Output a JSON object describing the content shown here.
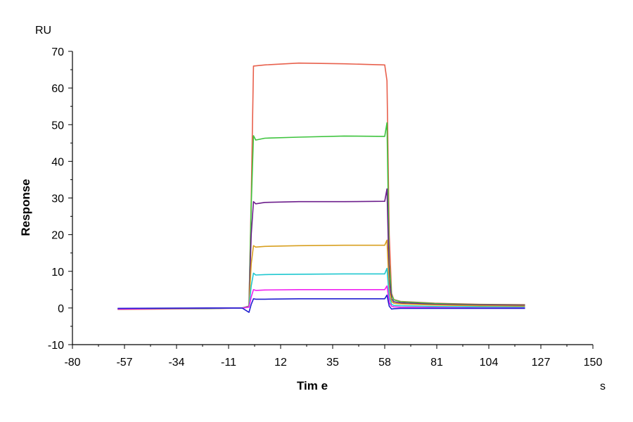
{
  "chart_data": {
    "type": "line",
    "title": "",
    "xlabel": "Tim e",
    "ylabel": "Response",
    "x_unit": "s",
    "y_unit": "RU",
    "xlim": [
      -80,
      150
    ],
    "ylim": [
      -10,
      70
    ],
    "x_ticks": [
      -80,
      -57,
      -34,
      -11,
      12,
      35,
      58,
      81,
      104,
      127,
      150
    ],
    "y_ticks": [
      -10,
      0,
      10,
      20,
      30,
      40,
      50,
      60,
      70
    ],
    "grid": false,
    "legend": "none",
    "series": [
      {
        "color": "#e8604c",
        "x": [
          -60,
          -20,
          -5,
          -2,
          -1,
          0,
          5,
          20,
          40,
          58,
          59,
          60,
          61,
          62,
          65,
          80,
          100,
          120
        ],
        "y": [
          -0.4,
          -0.2,
          0.0,
          0.5,
          30.0,
          66.0,
          66.3,
          66.8,
          66.6,
          66.3,
          62.0,
          20.0,
          4.0,
          2.3,
          1.8,
          1.3,
          1.0,
          0.9
        ]
      },
      {
        "color": "#3ec43e",
        "x": [
          -60,
          -20,
          -5,
          -2,
          -1,
          0,
          1,
          5,
          20,
          40,
          58,
          59,
          60,
          61,
          62,
          65,
          80,
          100,
          120
        ],
        "y": [
          -0.3,
          -0.1,
          0.0,
          0.5,
          28.0,
          47.0,
          45.8,
          46.3,
          46.6,
          46.9,
          46.8,
          50.5,
          12.0,
          3.5,
          2.2,
          1.7,
          1.2,
          0.9,
          0.8
        ]
      },
      {
        "color": "#6c1e8c",
        "x": [
          -60,
          -20,
          -5,
          -2,
          -1,
          0,
          1,
          5,
          20,
          40,
          58,
          59,
          60,
          61,
          62,
          65,
          80,
          100,
          120
        ],
        "y": [
          -0.2,
          -0.1,
          0.0,
          0.5,
          20.0,
          29.0,
          28.4,
          28.8,
          29.0,
          29.0,
          29.1,
          32.5,
          8.0,
          2.5,
          1.7,
          1.4,
          1.0,
          0.8,
          0.7
        ]
      },
      {
        "color": "#d8a020",
        "x": [
          -60,
          -20,
          -5,
          -2,
          -1,
          0,
          1,
          5,
          20,
          40,
          58,
          59,
          60,
          61,
          62,
          65,
          80,
          100,
          120
        ],
        "y": [
          -0.2,
          -0.1,
          0.0,
          0.4,
          12.0,
          17.0,
          16.6,
          16.8,
          17.0,
          17.1,
          17.1,
          18.5,
          5.0,
          1.8,
          1.3,
          1.1,
          0.8,
          0.6,
          0.5
        ]
      },
      {
        "color": "#20c8d0",
        "x": [
          -60,
          -20,
          -5,
          -2,
          -1,
          0,
          1,
          5,
          20,
          40,
          58,
          59,
          60,
          61,
          62,
          65,
          80,
          100,
          120
        ],
        "y": [
          -0.2,
          -0.1,
          0.0,
          0.3,
          6.0,
          9.5,
          9.0,
          9.1,
          9.2,
          9.3,
          9.3,
          10.8,
          3.0,
          1.0,
          0.7,
          0.6,
          0.4,
          0.3,
          0.2
        ]
      },
      {
        "color": "#f020f0",
        "x": [
          -60,
          -20,
          -5,
          -2,
          -1,
          0,
          1,
          5,
          20,
          40,
          58,
          59,
          60,
          61,
          62,
          65,
          80,
          100,
          120
        ],
        "y": [
          -0.3,
          0.0,
          0.0,
          0.2,
          3.0,
          5.0,
          4.8,
          4.9,
          5.0,
          5.0,
          5.0,
          6.0,
          1.5,
          0.5,
          0.3,
          0.2,
          0.1,
          0.0,
          0.0
        ]
      },
      {
        "color": "#2020d0",
        "x": [
          -60,
          -20,
          -5,
          -2,
          -1,
          0,
          1,
          5,
          20,
          40,
          58,
          59,
          60,
          61,
          62,
          65,
          80,
          100,
          120
        ],
        "y": [
          -0.1,
          0.0,
          0.0,
          -1.2,
          1.0,
          2.5,
          2.4,
          2.4,
          2.5,
          2.5,
          2.5,
          3.5,
          0.5,
          -0.3,
          -0.2,
          -0.1,
          -0.1,
          -0.1,
          -0.1
        ]
      }
    ]
  }
}
